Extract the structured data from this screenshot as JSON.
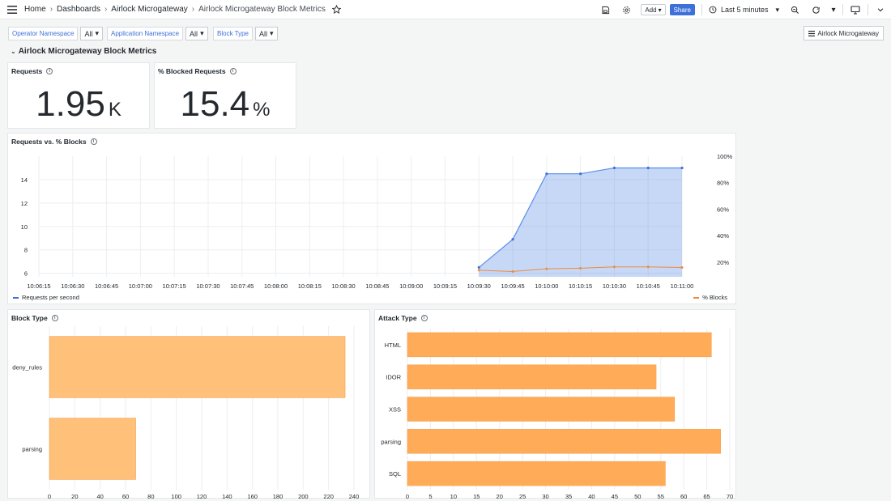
{
  "topbar": {
    "breadcrumbs": [
      "Home",
      "Dashboards",
      "Airlock Microgateway",
      "Airlock Microgateway Block Metrics"
    ],
    "add_label": "Add",
    "share_label": "Share",
    "time_range": "Last 5 minutes"
  },
  "variables": [
    {
      "label": "Operator Namespace",
      "value": "All"
    },
    {
      "label": "Application Namespace",
      "value": "All"
    },
    {
      "label": "Block Type",
      "value": "All"
    }
  ],
  "dashboard_link": "Airlock Microgateway",
  "row_title": "Airlock Microgateway Block Metrics",
  "stat_requests": {
    "title": "Requests",
    "value": "1.95",
    "unit": "K"
  },
  "stat_blocked": {
    "title": "% Blocked Requests",
    "value": "15.4",
    "unit": "%"
  },
  "timeseries": {
    "title": "Requests vs. % Blocks",
    "legend": [
      "Requests per second",
      "% Blocks"
    ]
  },
  "block_type": {
    "title": "Block Type"
  },
  "attack_type": {
    "title": "Attack Type"
  },
  "colors": {
    "requests": "#5b8ee6",
    "blocks": "#f08a3a",
    "block_bar": "#ffc07a",
    "attack_bar": "#ffab57"
  },
  "chart_data": [
    {
      "type": "line",
      "title": "Requests vs. % Blocks",
      "x_ticks": [
        "10:06:15",
        "10:06:30",
        "10:06:45",
        "10:07:00",
        "10:07:15",
        "10:07:30",
        "10:07:45",
        "10:08:00",
        "10:08:15",
        "10:08:30",
        "10:08:45",
        "10:09:00",
        "10:09:15",
        "10:09:30",
        "10:09:45",
        "10:10:00",
        "10:10:15",
        "10:10:30",
        "10:10:45",
        "10:11:00"
      ],
      "y_left": {
        "ticks": [
          6,
          8,
          10,
          12,
          14
        ],
        "range": [
          5.7,
          16
        ]
      },
      "y_right": {
        "ticks": [
          "20%",
          "40%",
          "60%",
          "80%",
          "100%"
        ],
        "range": [
          0.09,
          1.0
        ]
      },
      "series": [
        {
          "name": "Requests per second",
          "axis": "left",
          "x": [
            13,
            14,
            15,
            16,
            17,
            18,
            19
          ],
          "values": [
            6.5,
            8.9,
            14.5,
            14.5,
            15.0,
            15.0,
            15.0
          ]
        },
        {
          "name": "% Blocks",
          "axis": "right",
          "x": [
            13,
            14,
            15,
            16,
            17,
            18,
            19
          ],
          "values": [
            0.14,
            0.13,
            0.15,
            0.155,
            0.165,
            0.165,
            0.16
          ]
        }
      ]
    },
    {
      "type": "bar",
      "orientation": "horizontal",
      "title": "Block Type",
      "categories": [
        "deny_rules",
        "parsing"
      ],
      "values": [
        233,
        68
      ],
      "x_ticks": [
        0,
        20,
        40,
        60,
        80,
        100,
        120,
        140,
        160,
        180,
        200,
        220,
        240
      ],
      "xlim": [
        0,
        240
      ]
    },
    {
      "type": "bar",
      "orientation": "horizontal",
      "title": "Attack Type",
      "categories": [
        "HTML",
        "IDOR",
        "XSS",
        "parsing",
        "SQL"
      ],
      "values": [
        66,
        54,
        58,
        68,
        56
      ],
      "x_ticks": [
        0,
        5,
        10,
        15,
        20,
        25,
        30,
        35,
        40,
        45,
        50,
        55,
        60,
        65,
        70
      ],
      "xlim": [
        0,
        70
      ]
    }
  ]
}
